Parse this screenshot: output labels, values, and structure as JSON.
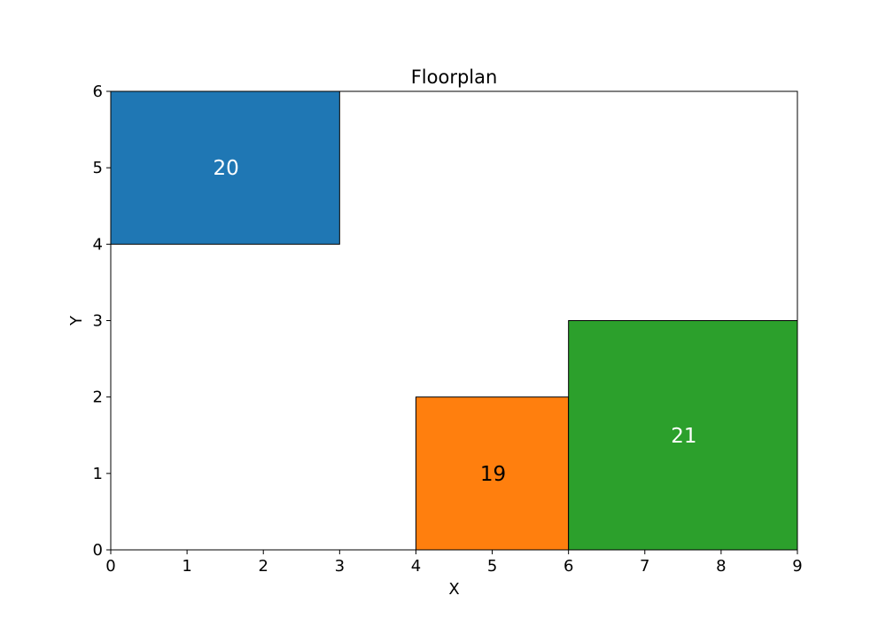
{
  "chart_data": {
    "type": "floorplan",
    "title": "Floorplan",
    "xlabel": "X",
    "ylabel": "Y",
    "xlim": [
      0,
      9
    ],
    "ylim": [
      0,
      6
    ],
    "xticks": [
      0,
      1,
      2,
      3,
      4,
      5,
      6,
      7,
      8,
      9
    ],
    "yticks": [
      0,
      1,
      2,
      3,
      4,
      5,
      6
    ],
    "grid": false,
    "rooms": [
      {
        "label": "20",
        "x0": 0,
        "x1": 3,
        "y0": 4,
        "y1": 6,
        "color": "#1f77b4",
        "text_color": "#ffffff"
      },
      {
        "label": "19",
        "x0": 4,
        "x1": 6,
        "y0": 0,
        "y1": 2,
        "color": "#ff7f0e",
        "text_color": "#000000"
      },
      {
        "label": "21",
        "x0": 6,
        "x1": 9,
        "y0": 0,
        "y1": 3,
        "color": "#2ca02c",
        "text_color": "#ffffff"
      }
    ]
  }
}
